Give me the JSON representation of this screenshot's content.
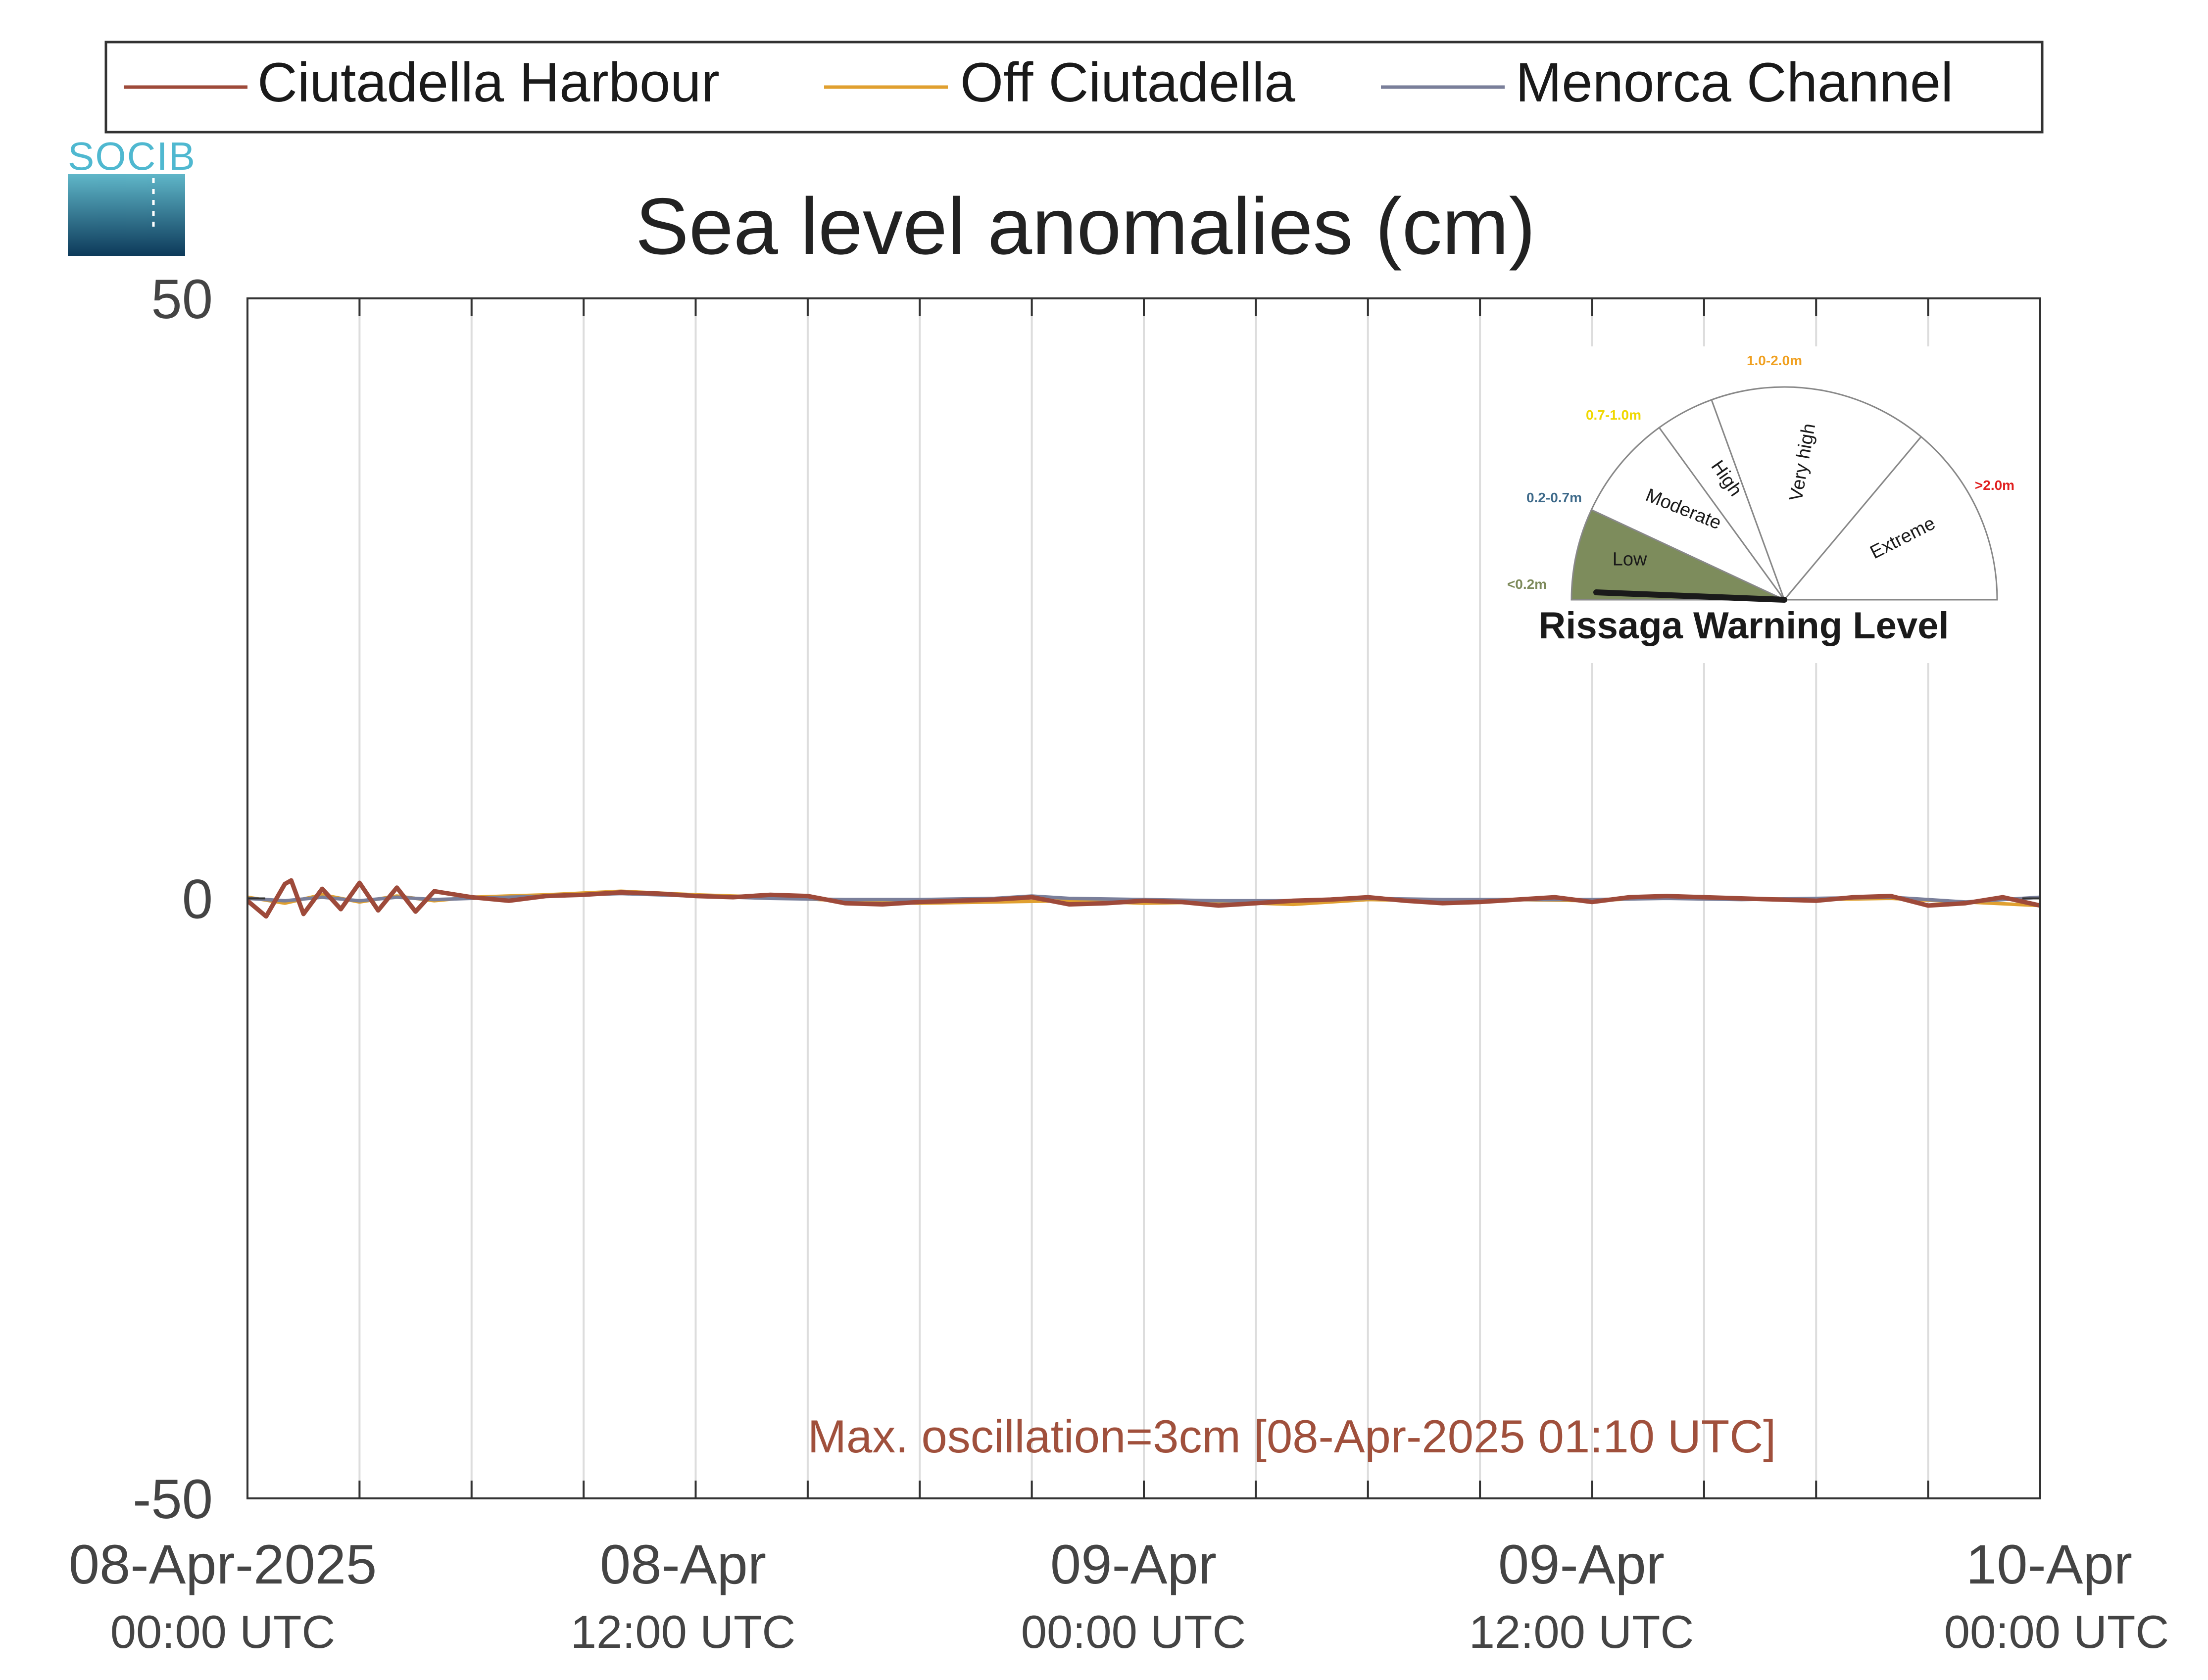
{
  "chart_data": {
    "type": "line",
    "title": "Sea level anomalies (cm)",
    "xlabel": "",
    "ylabel": "",
    "ylim": [
      -50,
      50
    ],
    "yticks": [
      {
        "value": -50,
        "label": "-50"
      },
      {
        "value": 0,
        "label": "0"
      },
      {
        "value": 50,
        "label": "50"
      }
    ],
    "xlim_hours": [
      0,
      48
    ],
    "x_unit": "hours from 08-Apr-2025 00:00 UTC",
    "xticks": [
      {
        "hour": 0,
        "date": "08-Apr-2025",
        "time": "00:00 UTC"
      },
      {
        "hour": 12,
        "date": "08-Apr",
        "time": "12:00 UTC"
      },
      {
        "hour": 24,
        "date": "09-Apr",
        "time": "00:00 UTC"
      },
      {
        "hour": 36,
        "date": "09-Apr",
        "time": "12:00 UTC"
      },
      {
        "hour": 48,
        "date": "10-Apr",
        "time": "00:00 UTC"
      }
    ],
    "minor_gridlines_every_hours": 3,
    "grid": true,
    "legend_placement": "top",
    "annotation": "Max. oscillation=3cm [08-Apr-2025 01:10 UTC]",
    "series": [
      {
        "name": "Ciutadella Harbour",
        "color": "#9e4a3a",
        "x": [
          0,
          0.5,
          1,
          1.17,
          1.5,
          2,
          2.5,
          3,
          3.5,
          4,
          4.5,
          5,
          6,
          7,
          8,
          9,
          10,
          11,
          12,
          13,
          14,
          15,
          16,
          17,
          18,
          19,
          20,
          21,
          22,
          23,
          24,
          25,
          26,
          27,
          28,
          29,
          30,
          31,
          32,
          33,
          34,
          35,
          36,
          37,
          38,
          39,
          40,
          41,
          42,
          43,
          44,
          45,
          46,
          47,
          48
        ],
        "values": [
          -0.2,
          -1.5,
          1.2,
          1.5,
          -1.3,
          0.8,
          -0.9,
          1.3,
          -1.0,
          0.9,
          -1.1,
          0.6,
          0.1,
          -0.2,
          0.2,
          0.3,
          0.5,
          0.4,
          0.2,
          0.1,
          0.3,
          0.2,
          -0.4,
          -0.5,
          -0.3,
          -0.2,
          -0.1,
          0.1,
          -0.5,
          -0.4,
          -0.2,
          -0.3,
          -0.6,
          -0.4,
          -0.2,
          -0.1,
          0.1,
          -0.2,
          -0.4,
          -0.3,
          -0.1,
          0.1,
          -0.3,
          0.1,
          0.2,
          0.1,
          0.0,
          -0.1,
          -0.2,
          0.1,
          0.2,
          -0.6,
          -0.4,
          0.1,
          -0.6
        ]
      },
      {
        "name": "Off Ciutadella",
        "color": "#e0a030",
        "x": [
          0,
          1,
          2,
          3,
          4,
          5,
          6,
          8,
          10,
          12,
          14,
          16,
          18,
          20,
          22,
          24,
          26,
          28,
          30,
          32,
          34,
          36,
          38,
          40,
          42,
          44,
          46,
          48
        ],
        "values": [
          0.1,
          -0.4,
          0.3,
          -0.3,
          0.2,
          -0.2,
          0.1,
          0.3,
          0.6,
          0.3,
          0.1,
          -0.2,
          -0.4,
          -0.3,
          -0.2,
          -0.4,
          -0.3,
          -0.5,
          -0.1,
          -0.2,
          -0.1,
          -0.2,
          0.1,
          0.0,
          -0.1,
          0.0,
          -0.3,
          -0.6
        ]
      },
      {
        "name": "Menorca Channel",
        "color": "#7a7f9a",
        "x": [
          0,
          1,
          2,
          3,
          4,
          5,
          6,
          8,
          10,
          12,
          14,
          16,
          18,
          20,
          21,
          22,
          24,
          26,
          28,
          30,
          32,
          34,
          36,
          38,
          40,
          42,
          44,
          46,
          48
        ],
        "values": [
          0.0,
          -0.2,
          0.1,
          -0.2,
          0.1,
          -0.1,
          0.0,
          0.2,
          0.4,
          0.2,
          0.0,
          -0.1,
          -0.1,
          0.0,
          0.2,
          0.0,
          -0.1,
          -0.2,
          -0.2,
          0.0,
          -0.1,
          -0.1,
          -0.1,
          0.0,
          -0.1,
          0.0,
          0.1,
          -0.3,
          0.1
        ]
      }
    ]
  },
  "logo": {
    "text": "SOCIB",
    "color": "#4fb8d0"
  },
  "gauge": {
    "title": "Rissaga Warning Level",
    "current_level": "Low",
    "sectors": [
      {
        "label": "Low",
        "range": "<0.2m",
        "range_color": "#7d8a5a",
        "fill": "#7d8c5c",
        "active": true
      },
      {
        "label": "Moderate",
        "range": "0.2-0.7m",
        "range_color": "#3e6a8a",
        "fill": "#ffffff",
        "active": false
      },
      {
        "label": "High",
        "range": "0.7-1.0m",
        "range_color": "#f0d800",
        "fill": "#ffffff",
        "active": false
      },
      {
        "label": "Very high",
        "range": "1.0-2.0m",
        "range_color": "#f0a020",
        "fill": "#ffffff",
        "active": false
      },
      {
        "label": "Extreme",
        "range": ">2.0m",
        "range_color": "#e02020",
        "fill": "#ffffff",
        "active": false
      }
    ]
  }
}
